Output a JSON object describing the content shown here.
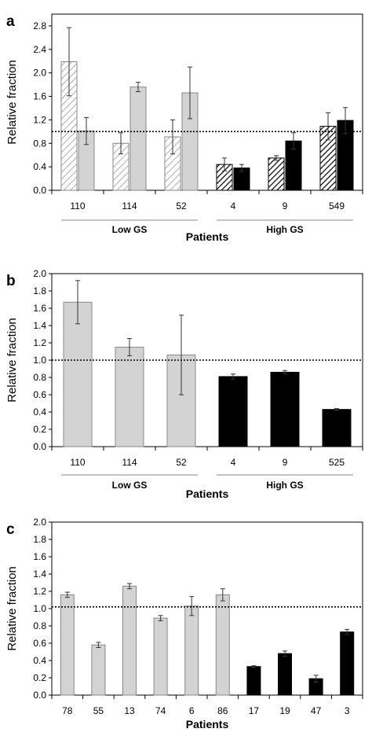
{
  "chart_data": [
    {
      "type": "bar",
      "panel_label": "a",
      "ylabel": "Relative fraction",
      "xlabel": "Patients",
      "ylim": [
        0,
        3.0
      ],
      "yticks": [
        "0.0",
        "0.4",
        "0.8",
        "1.2",
        "1.6",
        "2.0",
        "2.4",
        "2.8"
      ],
      "reference_line": 1.0,
      "grid": false,
      "categories": [
        "110",
        "114",
        "52",
        "4",
        "9",
        "549"
      ],
      "groups": [
        {
          "label": "Low GS",
          "categories": [
            "110",
            "114",
            "52"
          ]
        },
        {
          "label": "High GS",
          "categories": [
            "4",
            "9",
            "549"
          ]
        }
      ],
      "series": [
        {
          "values": [
            2.19,
            0.8,
            0.91,
            0.44,
            0.55,
            1.09
          ],
          "errors": [
            0.58,
            0.18,
            0.29,
            0.11,
            0.04,
            0.23
          ],
          "fills": [
            "hatch-light",
            "hatch-light",
            "hatch-light",
            "hatch-dark",
            "hatch-dark",
            "hatch-dark"
          ]
        },
        {
          "values": [
            1.01,
            1.76,
            1.66,
            0.38,
            0.84,
            1.19
          ],
          "errors": [
            0.23,
            0.08,
            0.44,
            0.06,
            0.14,
            0.22
          ],
          "fills": [
            "gray",
            "gray",
            "gray",
            "black",
            "black",
            "black"
          ]
        }
      ]
    },
    {
      "type": "bar",
      "panel_label": "b",
      "ylabel": "Relative fraction",
      "xlabel": "Patients",
      "ylim": [
        0,
        2.0
      ],
      "yticks": [
        "0.0",
        "0.2",
        "0.4",
        "0.6",
        "0.8",
        "1.0",
        "1.2",
        "1.4",
        "1.6",
        "1.8",
        "2.0"
      ],
      "reference_line": 1.0,
      "grid": false,
      "categories": [
        "110",
        "114",
        "52",
        "4",
        "9",
        "525"
      ],
      "groups": [
        {
          "label": "Low GS",
          "categories": [
            "110",
            "114",
            "52"
          ]
        },
        {
          "label": "High GS",
          "categories": [
            "4",
            "9",
            "525"
          ]
        }
      ],
      "series": [
        {
          "values": [
            1.67,
            1.15,
            1.06,
            0.81,
            0.86,
            0.43
          ],
          "errors": [
            0.25,
            0.1,
            0.46,
            0.03,
            0.02,
            0.01
          ],
          "fills": [
            "gray",
            "gray",
            "gray",
            "black",
            "black",
            "black"
          ]
        }
      ]
    },
    {
      "type": "bar",
      "panel_label": "c",
      "ylabel": "Relative fraction",
      "xlabel": "Patients",
      "ylim": [
        0,
        2.0
      ],
      "yticks": [
        "0.0",
        "0.2",
        "0.4",
        "0.6",
        "0.8",
        "1.0",
        "1.2",
        "1.4",
        "1.6",
        "1.8",
        "2.0"
      ],
      "reference_line": 1.02,
      "grid": false,
      "categories": [
        "78",
        "55",
        "13",
        "74",
        "6",
        "86",
        "17",
        "19",
        "47",
        "3"
      ],
      "series": [
        {
          "values": [
            1.16,
            0.58,
            1.26,
            0.89,
            1.03,
            1.16,
            0.33,
            0.48,
            0.19,
            0.73
          ],
          "errors": [
            0.03,
            0.03,
            0.03,
            0.03,
            0.11,
            0.07,
            0.01,
            0.03,
            0.04,
            0.03
          ],
          "fills": [
            "gray",
            "gray",
            "gray",
            "gray",
            "gray",
            "gray",
            "black",
            "black",
            "black",
            "black"
          ]
        }
      ]
    }
  ]
}
